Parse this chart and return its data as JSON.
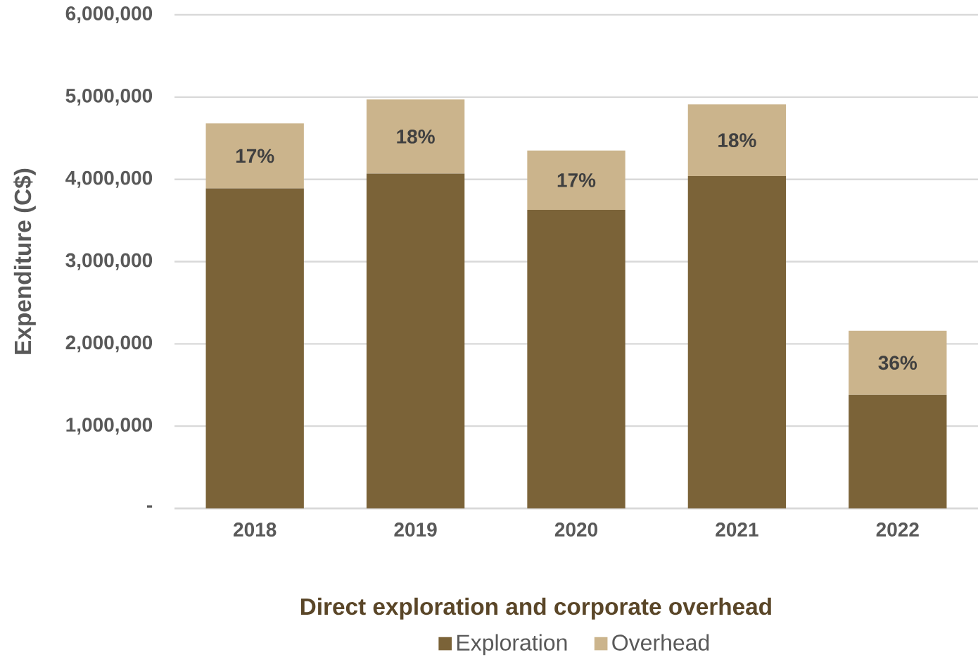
{
  "chart_data": {
    "type": "bar",
    "stacked": true,
    "title": "Direct exploration and corporate overhead",
    "ylabel": "Expenditure (C$)",
    "categories": [
      "2018",
      "2019",
      "2020",
      "2021",
      "2022"
    ],
    "series": [
      {
        "name": "Exploration",
        "color": "#7b6338",
        "values": [
          3890000,
          4070000,
          3630000,
          4040000,
          1380000
        ]
      },
      {
        "name": "Overhead",
        "color": "#cbb48c",
        "values": [
          790000,
          900000,
          720000,
          870000,
          780000
        ]
      }
    ],
    "annotations": [
      "17%",
      "18%",
      "17%",
      "18%",
      "36%"
    ],
    "ylim": [
      0,
      6000000
    ],
    "yticks": [
      {
        "value": 0,
        "label": "-"
      },
      {
        "value": 1000000,
        "label": "1,000,000"
      },
      {
        "value": 2000000,
        "label": "2,000,000"
      },
      {
        "value": 3000000,
        "label": "3,000,000"
      },
      {
        "value": 4000000,
        "label": "4,000,000"
      },
      {
        "value": 5000000,
        "label": "5,000,000"
      },
      {
        "value": 6000000,
        "label": "6,000,000"
      }
    ],
    "grid": "y",
    "legend": "bottom"
  }
}
